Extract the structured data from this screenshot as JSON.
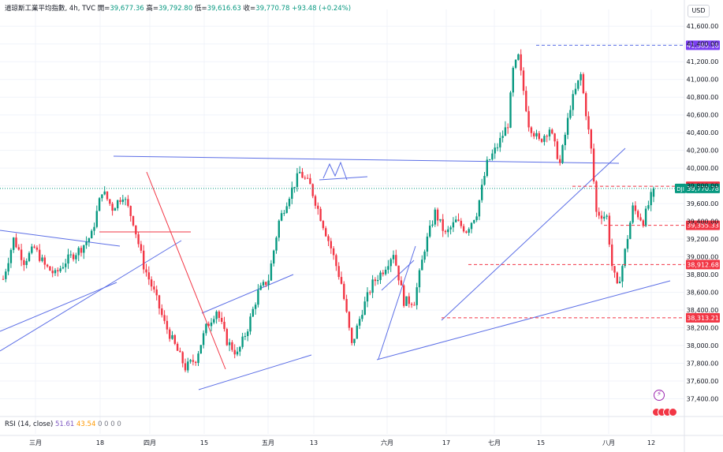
{
  "header": {
    "symbol_line": "道琼斯工業平均指數, 4h, TVC",
    "open_label": "開=",
    "open": "39,677.36",
    "high_label": "高=",
    "high": "39,792.80",
    "low_label": "低=",
    "low": "39,616.63",
    "close_label": "收=",
    "close": "39,770.78",
    "change": "+93.48 (+0.24%)"
  },
  "currency_button": "USD",
  "rsi": {
    "label": "RSI (14, close)",
    "value1": "51.61",
    "value2": "43.54",
    "zeros": "0 0 0 0"
  },
  "colors": {
    "up": "#089981",
    "down": "#f23645",
    "trendline": "#5b6ee6",
    "red_line": "#f23645",
    "grid": "#f0f3fa",
    "axis_text": "#131722"
  },
  "chart_data": {
    "type": "candlestick",
    "title": "道琼斯工業平均指數, 4h, TVC",
    "y_axis": {
      "min": 37200,
      "max": 41700,
      "ticks": [
        37400,
        37600,
        37800,
        38000,
        38200,
        38400,
        38600,
        38800,
        39000,
        39200,
        39400,
        39600,
        39800,
        40000,
        40200,
        40400,
        40600,
        40800,
        41000,
        41200,
        41400,
        41600
      ],
      "tick_labels": [
        "37,400.00",
        "37,600.00",
        "37,800.00",
        "38,000.00",
        "38,200.00",
        "38,400.00",
        "38,600.00",
        "38,800.00",
        "39,000.00",
        "39,200.00",
        "39,400.00",
        "39,600.00",
        "39,800.00",
        "40,000.00",
        "40,200.00",
        "40,400.00",
        "40,600.00",
        "40,800.00",
        "41,000.00",
        "41,200.00",
        "41,400.00",
        "41,600.00"
      ]
    },
    "x_axis_labels": [
      "三月",
      "18",
      "四月",
      "15",
      "五月",
      "13",
      "六月",
      "17",
      "七月",
      "15",
      "八月",
      "12"
    ],
    "price_markers": [
      {
        "value": 41385.18,
        "label": "41,385.18",
        "color": "#7b3ff2",
        "line": "#5b6ee6"
      },
      {
        "value": 39796.2,
        "label": "39,796.20",
        "color": "#f23645",
        "line": "#f23645"
      },
      {
        "value": 39770.78,
        "label": "39,770.78",
        "color": "#089981",
        "line": "#089981",
        "tag": "DJI"
      },
      {
        "value": 39355.33,
        "label": "39,355.33",
        "color": "#f23645",
        "line": "#f23645"
      },
      {
        "value": 38912.68,
        "label": "38,912.68",
        "color": "#f23645",
        "line": "#f23645"
      },
      {
        "value": 38313.21,
        "label": "38,313.21",
        "color": "#f23645",
        "line": "#f23645"
      }
    ],
    "anchors": [
      [
        0,
        38750
      ],
      [
        4,
        39200
      ],
      [
        8,
        38950
      ],
      [
        12,
        39100
      ],
      [
        16,
        38900
      ],
      [
        20,
        38800
      ],
      [
        24,
        38950
      ],
      [
        28,
        39050
      ],
      [
        30,
        39100
      ],
      [
        34,
        39250
      ],
      [
        38,
        39750
      ],
      [
        42,
        39550
      ],
      [
        46,
        39700
      ],
      [
        50,
        39400
      ],
      [
        54,
        38900
      ],
      [
        58,
        38600
      ],
      [
        62,
        38250
      ],
      [
        66,
        38000
      ],
      [
        70,
        37750
      ],
      [
        74,
        37850
      ],
      [
        78,
        38200
      ],
      [
        82,
        38400
      ],
      [
        86,
        38050
      ],
      [
        90,
        37900
      ],
      [
        94,
        38200
      ],
      [
        98,
        38600
      ],
      [
        102,
        38750
      ],
      [
        106,
        39400
      ],
      [
        110,
        39700
      ],
      [
        114,
        39950
      ],
      [
        118,
        39800
      ],
      [
        122,
        39450
      ],
      [
        126,
        39100
      ],
      [
        130,
        38700
      ],
      [
        134,
        38000
      ],
      [
        138,
        38400
      ],
      [
        142,
        38700
      ],
      [
        146,
        38850
      ],
      [
        150,
        39050
      ],
      [
        154,
        38500
      ],
      [
        158,
        38500
      ],
      [
        162,
        39100
      ],
      [
        166,
        39500
      ],
      [
        170,
        39250
      ],
      [
        174,
        39400
      ],
      [
        178,
        39300
      ],
      [
        182,
        39500
      ],
      [
        186,
        40050
      ],
      [
        190,
        40250
      ],
      [
        194,
        40500
      ],
      [
        196,
        41100
      ],
      [
        198,
        41250
      ],
      [
        202,
        40500
      ],
      [
        206,
        40300
      ],
      [
        210,
        40450
      ],
      [
        214,
        40050
      ],
      [
        218,
        40700
      ],
      [
        222,
        41050
      ],
      [
        226,
        40200
      ],
      [
        228,
        39500
      ],
      [
        232,
        39450
      ],
      [
        234,
        38900
      ],
      [
        236,
        38650
      ],
      [
        238,
        38900
      ],
      [
        242,
        39550
      ],
      [
        246,
        39400
      ],
      [
        250,
        39770
      ]
    ]
  }
}
